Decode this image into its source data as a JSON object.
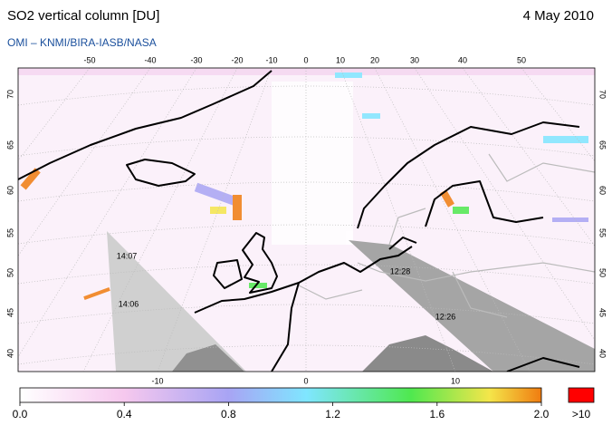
{
  "header": {
    "title": "SO2 vertical column [DU]",
    "date": "4 May 2010",
    "credit": "OMI  –  KNMI/BIRA-IASB/NASA"
  },
  "map": {
    "top_lon_labels": [
      "-50",
      "-40",
      "-30",
      "-20",
      "-10",
      "0",
      "10",
      "20",
      "30",
      "40",
      "50"
    ],
    "bottom_lon_labels": [
      "-10",
      "0",
      "10"
    ],
    "lat_labels": [
      "70",
      "65",
      "60",
      "55",
      "50",
      "45",
      "40"
    ],
    "overpass_times": [
      "14:07",
      "14:06",
      "12:28",
      "12:26"
    ]
  },
  "colorbar": {
    "ticks": [
      "0.0",
      "0.4",
      "0.8",
      "1.2",
      "1.6",
      "2.0"
    ],
    "overflow": ">10"
  }
}
